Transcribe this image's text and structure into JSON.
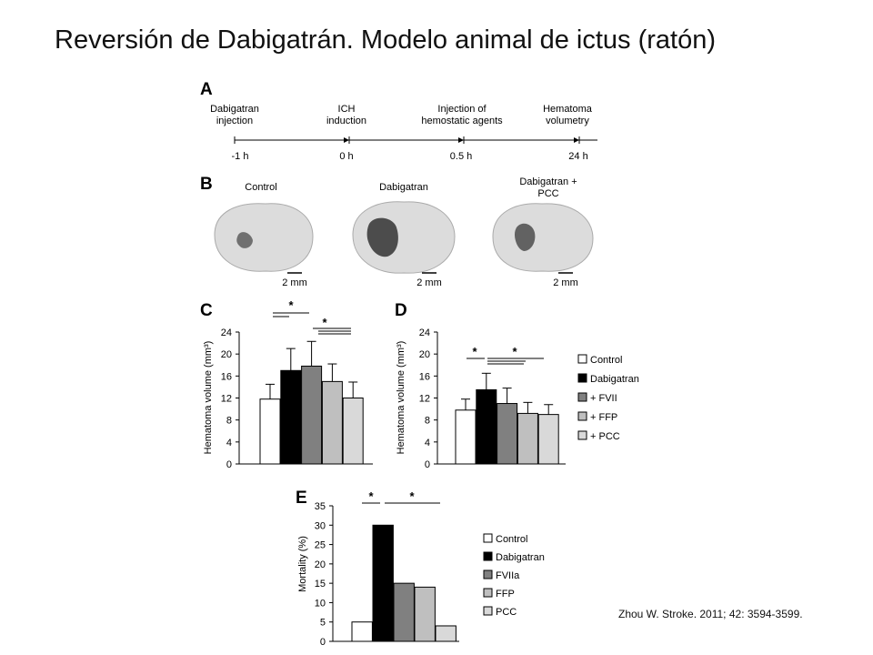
{
  "slide": {
    "title": "Reversión de Dabigatrán. Modelo animal de ictus (ratón)",
    "citation": "Zhou W. Stroke. 2011; 42: 3594-3599."
  },
  "panels": {
    "a": {
      "letter": "A",
      "events": [
        {
          "label_lines": [
            "Dabigatran",
            "injection"
          ],
          "time": "-1 h"
        },
        {
          "label_lines": [
            "ICH",
            "induction"
          ],
          "time": "0 h"
        },
        {
          "label_lines": [
            "Injection of",
            "hemostatic agents"
          ],
          "time": "0.5 h"
        },
        {
          "label_lines": [
            "Hematoma",
            "volumetry"
          ],
          "time": "24 h"
        }
      ]
    },
    "b": {
      "letter": "B",
      "images": [
        {
          "label_lines": [
            "Control"
          ],
          "scale": "2 mm",
          "lesion": "small"
        },
        {
          "label_lines": [
            "Dabigatran"
          ],
          "scale": "2 mm",
          "lesion": "large"
        },
        {
          "label_lines": [
            "Dabigatran +",
            "PCC"
          ],
          "scale": "2 mm",
          "lesion": "medium"
        }
      ]
    }
  },
  "colors": {
    "Control": "#ffffff",
    "Dabigatran": "#000000",
    "FVII": "#808080",
    "FFP": "#bfbfbf",
    "PCC": "#d9d9d9"
  },
  "chart_data": [
    {
      "panel": "C",
      "type": "bar",
      "categories": [
        "Control",
        "Dabigatran",
        "+ FVII",
        "+ FFP",
        "+ PCC"
      ],
      "values": [
        11.8,
        17,
        17.8,
        15,
        12
      ],
      "errors": [
        2.7,
        4,
        4.5,
        3.2,
        2.9
      ],
      "ylabel": "Hematoma volume (mm³)",
      "ylim": [
        0,
        24
      ],
      "yticks": [
        "0",
        "4",
        "8",
        "12",
        "16",
        "20",
        "24"
      ],
      "significance": [
        "*",
        "*"
      ],
      "legend": [],
      "grid": false
    },
    {
      "panel": "D",
      "type": "bar",
      "categories": [
        "Control",
        "Dabigatran",
        "+ FVII",
        "+ FFP",
        "+ PCC"
      ],
      "values": [
        9.8,
        13.5,
        11,
        9.2,
        9
      ],
      "errors": [
        2,
        3,
        2.8,
        2,
        1.8
      ],
      "ylabel": "Hematoma volume (mm³)",
      "ylim": [
        0,
        24
      ],
      "yticks": [
        "0",
        "4",
        "8",
        "12",
        "16",
        "20",
        "24"
      ],
      "significance": [
        "*",
        "*"
      ],
      "legend": [
        "Control",
        "Dabigatran",
        "+ FVII",
        "+ FFP",
        "+ PCC"
      ],
      "legend_position": "right",
      "grid": false
    },
    {
      "panel": "E",
      "type": "bar",
      "categories": [
        "Control",
        "Dabigatran",
        "FVIIa",
        "FFP",
        "PCC"
      ],
      "values": [
        5,
        30,
        15,
        14,
        4
      ],
      "ylabel": "Mortality (%)",
      "ylim": [
        0,
        35
      ],
      "yticks": [
        "0",
        "5",
        "10",
        "15",
        "20",
        "25",
        "30",
        "35"
      ],
      "significance": [
        "*",
        "*"
      ],
      "legend": [
        "Control",
        "Dabigatran",
        "FVIIa",
        "FFP",
        "PCC"
      ],
      "legend_position": "right",
      "grid": false
    }
  ]
}
